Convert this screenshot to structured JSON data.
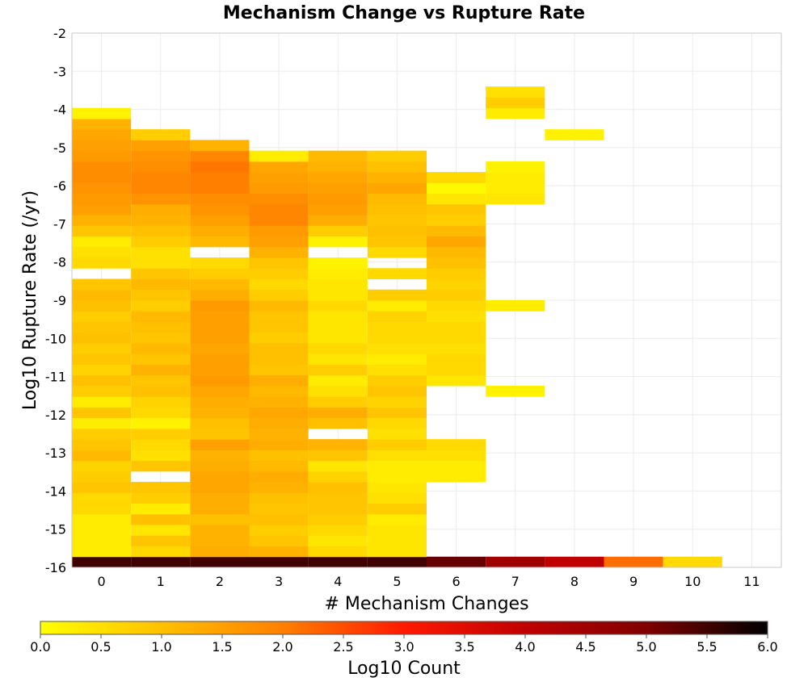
{
  "chart_data": {
    "type": "heatmap",
    "title": "Mechanism Change vs Rupture Rate",
    "xlabel": "# Mechanism Changes",
    "ylabel": "Log10 Rupture Rate (/yr)",
    "colorbar_label": "Log10 Count",
    "xlim": [
      -0.5,
      11.5
    ],
    "ylim": [
      -16,
      -2
    ],
    "x_ticks": [
      "0",
      "1",
      "2",
      "3",
      "4",
      "5",
      "6",
      "7",
      "8",
      "9",
      "10",
      "11"
    ],
    "y_ticks": [
      "-2",
      "-3",
      "-4",
      "-5",
      "-6",
      "-7",
      "-8",
      "-9",
      "-10",
      "-11",
      "-12",
      "-13",
      "-14",
      "-15",
      "-16"
    ],
    "colorbar_ticks": [
      "0.0",
      "0.5",
      "1.0",
      "1.5",
      "2.0",
      "2.5",
      "3.0",
      "3.5",
      "4.0",
      "4.5",
      "5.0",
      "5.5",
      "6.0"
    ],
    "color_range": [
      0,
      6
    ],
    "colormap": [
      "#ffff00",
      "#ffc000",
      "#ff8000",
      "#ff1a00",
      "#c00000",
      "#800000",
      "#000000"
    ],
    "grid": true,
    "y_bin_width": 0.28,
    "columns": [
      {
        "x": 0,
        "y_start": -15.86,
        "values": [
          5.5,
          0.3,
          0.3,
          0.3,
          0.3,
          0.6,
          0.6,
          0.9,
          0.8,
          0.7,
          1.1,
          0.9,
          0.8,
          0.3,
          0.9,
          0.3,
          0.8,
          1.0,
          0.7,
          0.9,
          0.8,
          1.0,
          0.9,
          0.8,
          1.0,
          1.1,
          0.9,
          null,
          0.6,
          0.5,
          0.3,
          0.9,
          1.2,
          1.5,
          1.6,
          1.7,
          1.8,
          1.8,
          1.6,
          1.5,
          1.4,
          1.2,
          0.2
        ]
      },
      {
        "x": 1,
        "y_start": -15.86,
        "values": [
          5.5,
          0.6,
          0.9,
          0.4,
          1.0,
          0.3,
          0.8,
          0.9,
          null,
          0.9,
          0.5,
          0.6,
          0.8,
          0.2,
          0.6,
          0.7,
          1.0,
          0.9,
          1.2,
          0.9,
          1.1,
          0.9,
          1.0,
          1.1,
          0.8,
          0.9,
          1.1,
          0.9,
          0.5,
          0.5,
          0.8,
          1.0,
          1.2,
          1.3,
          1.7,
          1.9,
          1.9,
          1.8,
          1.7,
          1.5,
          0.8
        ]
      },
      {
        "x": 2,
        "y_start": -15.86,
        "values": [
          5.5,
          1.3,
          1.2,
          1.2,
          1.0,
          1.3,
          1.3,
          1.4,
          1.4,
          1.3,
          1.2,
          1.5,
          0.9,
          1.0,
          1.2,
          1.3,
          1.4,
          1.6,
          1.5,
          1.5,
          1.4,
          1.5,
          1.5,
          1.5,
          1.6,
          1.3,
          1.1,
          0.8,
          0.6,
          null,
          1.1,
          1.3,
          1.5,
          1.7,
          1.8,
          2.0,
          2.0,
          2.1,
          1.9,
          1.2
        ]
      },
      {
        "x": 3,
        "y_start": -15.86,
        "values": [
          5.5,
          1.2,
          0.9,
          0.8,
          1.0,
          0.9,
          1.0,
          1.2,
          1.3,
          1.1,
          1.0,
          1.3,
          1.2,
          1.3,
          1.4,
          1.2,
          1.1,
          1.3,
          0.9,
          1.0,
          1.0,
          0.8,
          0.9,
          0.9,
          1.1,
          0.8,
          0.6,
          0.8,
          0.9,
          1.2,
          1.5,
          1.6,
          1.9,
          1.9,
          1.8,
          1.6,
          1.5,
          1.4,
          0.3
        ]
      },
      {
        "x": 4,
        "y_start": -15.86,
        "values": [
          5.5,
          0.6,
          0.4,
          0.6,
          0.8,
          0.9,
          0.9,
          1.0,
          0.7,
          0.4,
          0.9,
          1.2,
          null,
          1.0,
          1.3,
          0.8,
          0.5,
          0.3,
          0.8,
          0.4,
          0.6,
          0.4,
          0.4,
          0.4,
          0.6,
          0.4,
          0.4,
          0.3,
          0.2,
          null,
          0.2,
          0.8,
          1.3,
          1.5,
          1.6,
          1.5,
          1.4,
          1.2,
          1.1
        ]
      },
      {
        "x": 5,
        "y_start": -15.86,
        "values": [
          5.5,
          0.4,
          0.4,
          0.4,
          0.3,
          0.8,
          0.5,
          0.4,
          0.3,
          0.3,
          0.5,
          0.8,
          0.5,
          0.6,
          0.9,
          0.7,
          0.9,
          0.8,
          0.5,
          0.3,
          0.5,
          0.6,
          0.6,
          0.7,
          0.3,
          0.8,
          null,
          0.6,
          null,
          0.6,
          0.9,
          1.0,
          0.9,
          1.0,
          1.1,
          1.4,
          1.2,
          1.0,
          0.8
        ]
      },
      {
        "x": 6,
        "y_start": -15.86,
        "values": [
          5.2,
          null,
          null,
          null,
          null,
          null,
          null,
          null,
          0.3,
          0.3,
          0.5,
          0.6,
          null,
          null,
          null,
          null,
          null,
          0.4,
          0.6,
          0.6,
          0.5,
          0.6,
          0.6,
          0.5,
          0.6,
          0.8,
          0.7,
          0.8,
          1.0,
          1.1,
          1.4,
          1.1,
          0.8,
          0.9,
          0.4,
          0.1,
          0.6
        ]
      },
      {
        "x": 7,
        "y_start": -15.86,
        "values": [
          4.5,
          null,
          null,
          null,
          null,
          null,
          null,
          null,
          null,
          null,
          null,
          null,
          null,
          null,
          null,
          null,
          0.2,
          null,
          null,
          null,
          null,
          null,
          null,
          null,
          0.3,
          null,
          null,
          null,
          null,
          null,
          null,
          null,
          null,
          null,
          0.4,
          0.3,
          0.3,
          0.2,
          null,
          null,
          null,
          null,
          0.3,
          0.8,
          0.5
        ]
      },
      {
        "x": 8,
        "y_start": -15.86,
        "values": [
          4.0,
          null,
          null,
          null,
          null,
          null,
          null,
          null,
          null,
          null,
          null,
          null,
          null,
          null,
          null,
          null,
          null,
          null,
          null,
          null,
          null,
          null,
          null,
          null,
          null,
          null,
          null,
          null,
          null,
          null,
          null,
          null,
          null,
          null,
          null,
          null,
          null,
          null,
          null,
          null,
          0.2
        ]
      },
      {
        "x": 9,
        "y_start": -15.86,
        "values": [
          2.2
        ]
      },
      {
        "x": 10,
        "y_start": -15.86,
        "values": [
          0.6
        ]
      }
    ]
  }
}
